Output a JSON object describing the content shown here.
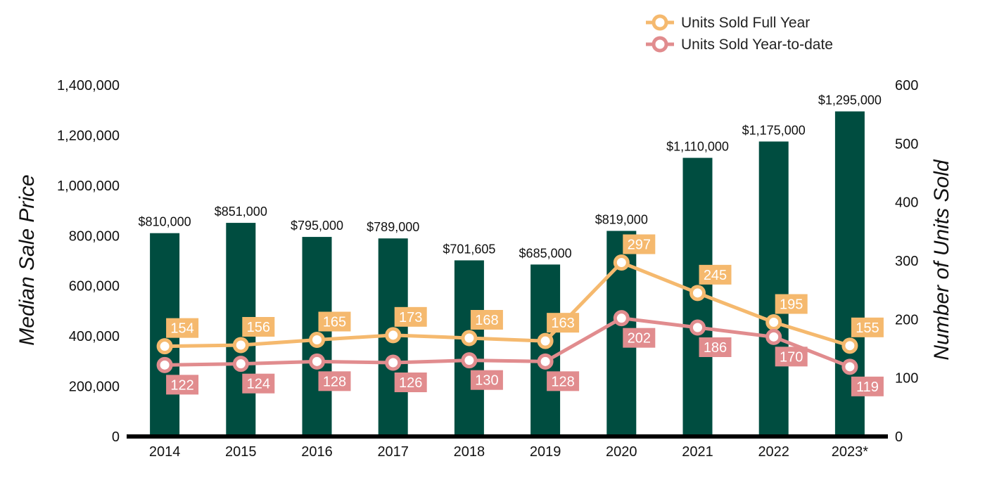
{
  "chart_data": {
    "type": "bar",
    "categories": [
      "2014",
      "2015",
      "2016",
      "2017",
      "2018",
      "2019",
      "2020",
      "2021",
      "2022",
      "2023*"
    ],
    "y_left": {
      "label": "Median Sale Price",
      "range": [
        0,
        1400000
      ],
      "ticks": [
        "0",
        "200,000",
        "400,000",
        "600,000",
        "800,000",
        "1,000,000",
        "1,200,000",
        "1,400,000"
      ]
    },
    "y_right": {
      "label": "Number of Units Sold",
      "range": [
        0,
        600
      ],
      "ticks": [
        "0",
        "100",
        "200",
        "300",
        "400",
        "500",
        "600"
      ]
    },
    "bars": {
      "color": "#004d40",
      "values": [
        810000,
        851000,
        795000,
        789000,
        701605,
        685000,
        819000,
        1110000,
        1175000,
        1295000
      ],
      "labels": [
        "$810,000",
        "$851,000",
        "$795,000",
        "$789,000",
        "$701,605",
        "$685,000",
        "$819,000",
        "$1,110,000",
        "$1,175,000",
        "$1,295,000"
      ]
    },
    "series": [
      {
        "name": "Units Sold Full Year",
        "axis": "right",
        "color": "#f5b96e",
        "values": [
          154,
          156,
          165,
          173,
          168,
          163,
          297,
          245,
          195,
          155
        ],
        "label_position": "above"
      },
      {
        "name": "Units Sold Year-to-date",
        "axis": "right",
        "color": "#e18c8e",
        "values": [
          122,
          124,
          128,
          126,
          130,
          128,
          202,
          186,
          170,
          119
        ],
        "label_position": "below"
      }
    ],
    "legend": "top-right",
    "grid": false
  }
}
